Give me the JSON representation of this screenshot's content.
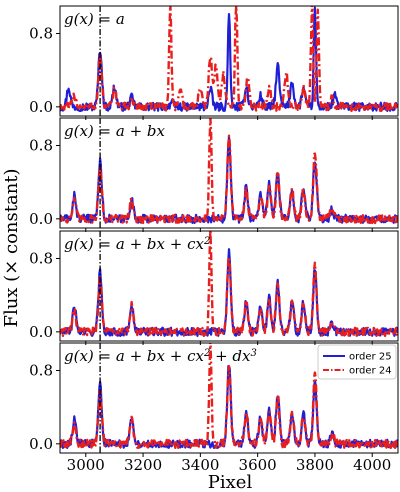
{
  "chart_data": {
    "type": "line",
    "ylabel": "Flux (× constant)",
    "xlabel": "Pixel",
    "xlim": [
      2910,
      4090
    ],
    "ylim": [
      -0.1,
      1.1
    ],
    "x_ticks": [
      3000,
      3200,
      3400,
      3600,
      3800,
      4000
    ],
    "y_ticks": [
      0.0,
      0.8
    ],
    "vline_x": 3050,
    "colors": {
      "order_25": "#1f1fd6",
      "order_24": "#e8201d",
      "vline": "#000000"
    },
    "legend": {
      "position": "upper-right-inset",
      "panel": 3,
      "entries": [
        {
          "label": "order 25",
          "style": "solid",
          "color": "#1f1fd6"
        },
        {
          "label": "order 24",
          "style": "dash-dot",
          "color": "#e8201d"
        }
      ]
    },
    "panels": [
      {
        "title": "g(x) = a",
        "series": [
          {
            "name": "order 25",
            "peaks": [
              [
                2940,
                0.21
              ],
              [
                3050,
                0.63
              ],
              [
                3100,
                0.22
              ],
              [
                3160,
                0.1
              ],
              [
                3300,
                0.05
              ],
              [
                3435,
                0.19
              ],
              [
                3500,
                1.05
              ],
              [
                3560,
                0.22
              ],
              [
                3610,
                0.12
              ],
              [
                3670,
                0.45
              ],
              [
                3720,
                0.28
              ],
              [
                3760,
                0.2
              ],
              [
                3800,
                1.05
              ],
              [
                3870,
                0.12
              ]
            ]
          },
          {
            "name": "order 24",
            "peaks": [
              [
                2960,
                0.12
              ],
              [
                3050,
                0.55
              ],
              [
                3100,
                0.2
              ],
              [
                3160,
                0.07
              ],
              [
                3295,
                1.1
              ],
              [
                3330,
                0.2
              ],
              [
                3400,
                0.2
              ],
              [
                3435,
                0.55
              ],
              [
                3455,
                0.45
              ],
              [
                3480,
                0.35
              ],
              [
                3525,
                1.1
              ],
              [
                3565,
                0.3
              ],
              [
                3640,
                0.22
              ],
              [
                3700,
                0.35
              ],
              [
                3760,
                0.2
              ],
              [
                3790,
                1.1
              ],
              [
                3810,
                1.05
              ],
              [
                3860,
                0.1
              ]
            ]
          }
        ]
      },
      {
        "title": "g(x) = a + bx",
        "series": [
          {
            "name": "order 25",
            "peaks": [
              [
                2960,
                0.25
              ],
              [
                3050,
                0.62
              ],
              [
                3160,
                0.2
              ],
              [
                3500,
                0.9
              ],
              [
                3560,
                0.35
              ],
              [
                3610,
                0.28
              ],
              [
                3640,
                0.38
              ],
              [
                3670,
                0.52
              ],
              [
                3720,
                0.33
              ],
              [
                3760,
                0.33
              ],
              [
                3800,
                0.65
              ],
              [
                3860,
                0.1
              ]
            ]
          },
          {
            "name": "order 24",
            "peaks": [
              [
                2960,
                0.2
              ],
              [
                3050,
                0.55
              ],
              [
                3160,
                0.2
              ],
              [
                3435,
                1.1
              ],
              [
                3500,
                0.88
              ],
              [
                3560,
                0.33
              ],
              [
                3610,
                0.26
              ],
              [
                3640,
                0.36
              ],
              [
                3670,
                0.5
              ],
              [
                3720,
                0.33
              ],
              [
                3760,
                0.32
              ],
              [
                3800,
                0.73
              ],
              [
                3860,
                0.1
              ]
            ]
          }
        ]
      },
      {
        "title": "g(x) = a + bx + cx^2",
        "series": [
          {
            "name": "order 25",
            "peaks": [
              [
                2960,
                0.27
              ],
              [
                3050,
                0.65
              ],
              [
                3160,
                0.3
              ],
              [
                3500,
                0.88
              ],
              [
                3560,
                0.35
              ],
              [
                3610,
                0.28
              ],
              [
                3640,
                0.38
              ],
              [
                3670,
                0.55
              ],
              [
                3720,
                0.33
              ],
              [
                3760,
                0.32
              ],
              [
                3800,
                0.68
              ],
              [
                3860,
                0.1
              ]
            ]
          },
          {
            "name": "order 24",
            "peaks": [
              [
                2960,
                0.22
              ],
              [
                3050,
                0.58
              ],
              [
                3160,
                0.28
              ],
              [
                3435,
                1.1
              ],
              [
                3500,
                0.85
              ],
              [
                3560,
                0.33
              ],
              [
                3610,
                0.27
              ],
              [
                3640,
                0.36
              ],
              [
                3670,
                0.52
              ],
              [
                3720,
                0.33
              ],
              [
                3760,
                0.31
              ],
              [
                3800,
                0.75
              ],
              [
                3860,
                0.1
              ]
            ]
          }
        ]
      },
      {
        "title": "g(x) = a + bx + cx^2 + dx^3",
        "series": [
          {
            "name": "order 25",
            "peaks": [
              [
                2960,
                0.27
              ],
              [
                3050,
                0.65
              ],
              [
                3160,
                0.3
              ],
              [
                3500,
                0.88
              ],
              [
                3560,
                0.35
              ],
              [
                3610,
                0.28
              ],
              [
                3640,
                0.38
              ],
              [
                3670,
                0.55
              ],
              [
                3720,
                0.33
              ],
              [
                3760,
                0.32
              ],
              [
                3800,
                0.68
              ],
              [
                3860,
                0.1
              ]
            ]
          },
          {
            "name": "order 24",
            "peaks": [
              [
                2960,
                0.22
              ],
              [
                3050,
                0.58
              ],
              [
                3160,
                0.28
              ],
              [
                3435,
                1.1
              ],
              [
                3500,
                0.85
              ],
              [
                3560,
                0.33
              ],
              [
                3610,
                0.27
              ],
              [
                3640,
                0.36
              ],
              [
                3670,
                0.52
              ],
              [
                3720,
                0.33
              ],
              [
                3760,
                0.31
              ],
              [
                3800,
                0.75
              ],
              [
                3860,
                0.1
              ]
            ]
          }
        ]
      }
    ]
  }
}
